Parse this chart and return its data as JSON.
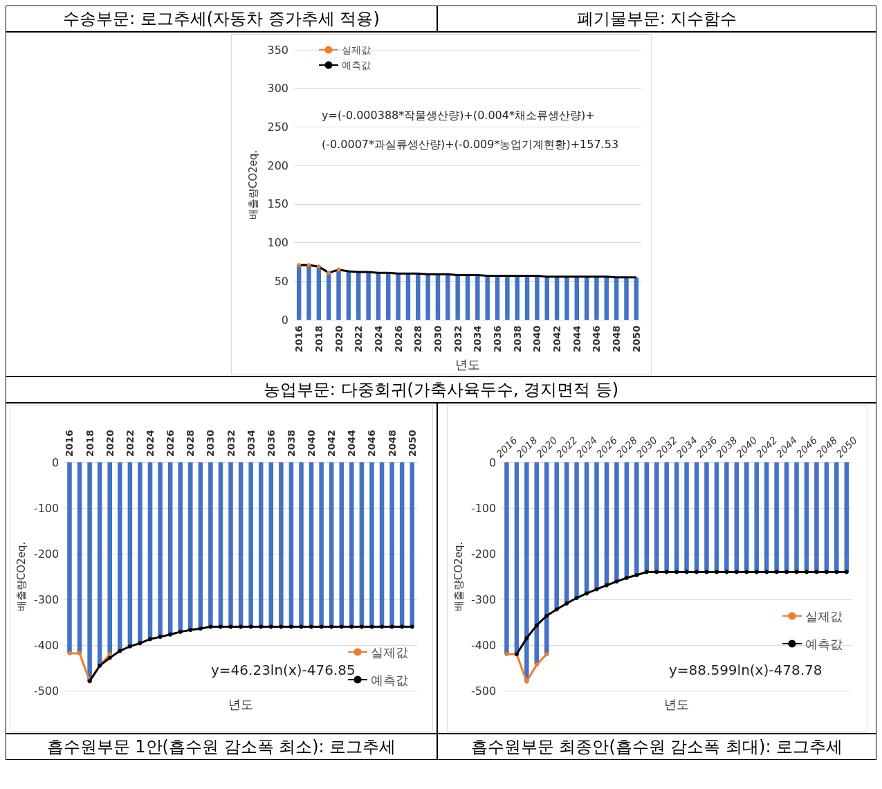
{
  "chart_data": [
    {
      "type": "other",
      "annotations": [
        "수송부문: 로그추세(자동차 증가추세 적용)",
        "폐기물부문: 지수함수"
      ]
    },
    {
      "type": "bar",
      "title": "농업부문: 다중회귀(가축사육두수, 경지면적 등)",
      "xlabel": "년도",
      "ylabel": "배출량CO2eq.",
      "categories": [
        "2016",
        null,
        "2018",
        null,
        "2020",
        null,
        "2022",
        null,
        "2024",
        null,
        "2026",
        null,
        "2028",
        null,
        "2030",
        null,
        "2032",
        null,
        "2034",
        null,
        "2036",
        null,
        "2038",
        null,
        "2040",
        null,
        "2042",
        null,
        "2044",
        null,
        "2046",
        null,
        "2048",
        null,
        "2050"
      ],
      "series": [
        {
          "type": "bar",
          "color": "#4472c4",
          "values": [
            71,
            71,
            69,
            61,
            65,
            63,
            62,
            62,
            61,
            61,
            60,
            60,
            60,
            59,
            59,
            59,
            58,
            58,
            58,
            57,
            57,
            57,
            57,
            57,
            57,
            56,
            56,
            56,
            56,
            56,
            56,
            56,
            55,
            55,
            55
          ]
        },
        {
          "type": "line",
          "name": "실제값",
          "color": "#ed7d31",
          "marker": "circle",
          "values": [
            71,
            71,
            69,
            61,
            65,
            null,
            null,
            null,
            null,
            null,
            null,
            null,
            null,
            null,
            null,
            null,
            null,
            null,
            null,
            null,
            null,
            null,
            null,
            null,
            null,
            null,
            null,
            null,
            null,
            null,
            null,
            null,
            null,
            null,
            null
          ]
        },
        {
          "type": "line",
          "name": "예측값",
          "color": "#000000",
          "marker": "none",
          "values": [
            71,
            71,
            69,
            61,
            65,
            63,
            62,
            62,
            61,
            61,
            60,
            60,
            60,
            59,
            59,
            59,
            58,
            58,
            58,
            57,
            57,
            57,
            57,
            57,
            57,
            56,
            56,
            56,
            56,
            56,
            56,
            56,
            55,
            55,
            55
          ]
        }
      ],
      "ylim": [
        0,
        350
      ],
      "yticks": [
        0,
        50,
        100,
        150,
        200,
        250,
        300,
        350
      ],
      "grid": "y",
      "legend": "top left",
      "annotations": [
        "y=(-0.000388*작물생산량)+(0.004*채소류생산량)+",
        "(-0.0007*과실류생산량)+(-0.009*농업기계현황)+157.53"
      ]
    },
    {
      "type": "bar",
      "title": "흡수원부문 1안(흡수원 감소폭 최소): 로그추세",
      "xlabel": "년도",
      "ylabel": "배출량CO2eq.",
      "categories": [
        "2016",
        null,
        "2018",
        null,
        "2020",
        null,
        "2022",
        null,
        "2024",
        null,
        "2026",
        null,
        "2028",
        null,
        "2030",
        null,
        "2032",
        null,
        "2034",
        null,
        "2036",
        null,
        "2038",
        null,
        "2040",
        null,
        "2042",
        null,
        "2044",
        null,
        "2046",
        null,
        "2048",
        null,
        "2050"
      ],
      "series": [
        {
          "type": "bar",
          "color": "#4472c4",
          "values": [
            -418,
            -418,
            -479,
            -445,
            -420,
            -413,
            -403,
            -396,
            -387,
            -382,
            -377,
            -371,
            -367,
            -364,
            -360,
            -360,
            -360,
            -360,
            -360,
            -360,
            -360,
            -360,
            -360,
            -360,
            -360,
            -360,
            -360,
            -360,
            -360,
            -360,
            -360,
            -360,
            -360,
            -360,
            -360
          ]
        },
        {
          "type": "line",
          "name": "실제값",
          "color": "#ed7d31",
          "marker": "circle",
          "values": [
            -418,
            -418,
            -479,
            -445,
            -420,
            null,
            null,
            null,
            null,
            null,
            null,
            null,
            null,
            null,
            null,
            null,
            null,
            null,
            null,
            null,
            null,
            null,
            null,
            null,
            null,
            null,
            null,
            null,
            null,
            null,
            null,
            null,
            null,
            null,
            null
          ]
        },
        {
          "type": "line",
          "name": "예측값",
          "color": "#000000",
          "marker": "circle",
          "values": [
            null,
            null,
            -479,
            -445,
            -428,
            -413,
            -403,
            -396,
            -387,
            -382,
            -377,
            -371,
            -367,
            -364,
            -360,
            -360,
            -360,
            -360,
            -360,
            -360,
            -360,
            -360,
            -360,
            -360,
            -360,
            -360,
            -360,
            -360,
            -360,
            -360,
            -360,
            -360,
            -360,
            -360,
            -360
          ]
        }
      ],
      "ylim": [
        -500,
        0
      ],
      "yticks": [
        -500,
        -400,
        -300,
        -200,
        -100,
        0
      ],
      "grid": "y",
      "legend": "bottom right",
      "annotations": [
        "y=46.23ln(x)-476.85"
      ]
    },
    {
      "type": "bar",
      "title": "흡수원부문 최종안(흡수원 감소폭 최대): 로그추세",
      "xlabel": "년도",
      "ylabel": "배출량CO2eq.",
      "categories": [
        "2016",
        null,
        "2018",
        null,
        "2020",
        null,
        "2022",
        null,
        "2024",
        null,
        "2026",
        null,
        "2028",
        null,
        "2030",
        null,
        "2032",
        null,
        "2034",
        null,
        "2036",
        null,
        "2038",
        null,
        "2040",
        null,
        "2042",
        null,
        "2044",
        null,
        "2046",
        null,
        "2048",
        null,
        "2050"
      ],
      "series": [
        {
          "type": "bar",
          "color": "#4472c4",
          "values": [
            -420,
            -420,
            -480,
            -443,
            -420,
            -322,
            -309,
            -297,
            -287,
            -278,
            -269,
            -261,
            -253,
            -247,
            -240,
            -240,
            -240,
            -240,
            -240,
            -240,
            -240,
            -240,
            -240,
            -240,
            -240,
            -240,
            -240,
            -240,
            -240,
            -240,
            -240,
            -240,
            -240,
            -240,
            -240
          ]
        },
        {
          "type": "line",
          "name": "실제값",
          "color": "#ed7d31",
          "marker": "circle",
          "values": [
            -420,
            -420,
            -480,
            -443,
            -420,
            null,
            null,
            null,
            null,
            null,
            null,
            null,
            null,
            null,
            null,
            null,
            null,
            null,
            null,
            null,
            null,
            null,
            null,
            null,
            null,
            null,
            null,
            null,
            null,
            null,
            null,
            null,
            null,
            null,
            null
          ]
        },
        {
          "type": "line",
          "name": "예측값",
          "color": "#000000",
          "marker": "circle",
          "values": [
            null,
            -420,
            -385,
            -357,
            -336,
            -322,
            -309,
            -297,
            -287,
            -278,
            -269,
            -261,
            -253,
            -247,
            -240,
            -240,
            -240,
            -240,
            -240,
            -240,
            -240,
            -240,
            -240,
            -240,
            -240,
            -240,
            -240,
            -240,
            -240,
            -240,
            -240,
            -240,
            -240,
            -240,
            -240
          ]
        }
      ],
      "ylim": [
        -500,
        0
      ],
      "yticks": [
        -500,
        -400,
        -300,
        -200,
        -100,
        0
      ],
      "grid": "y",
      "legend": "right",
      "annotations": [
        "y=88.599ln(x)-478.78"
      ]
    }
  ]
}
